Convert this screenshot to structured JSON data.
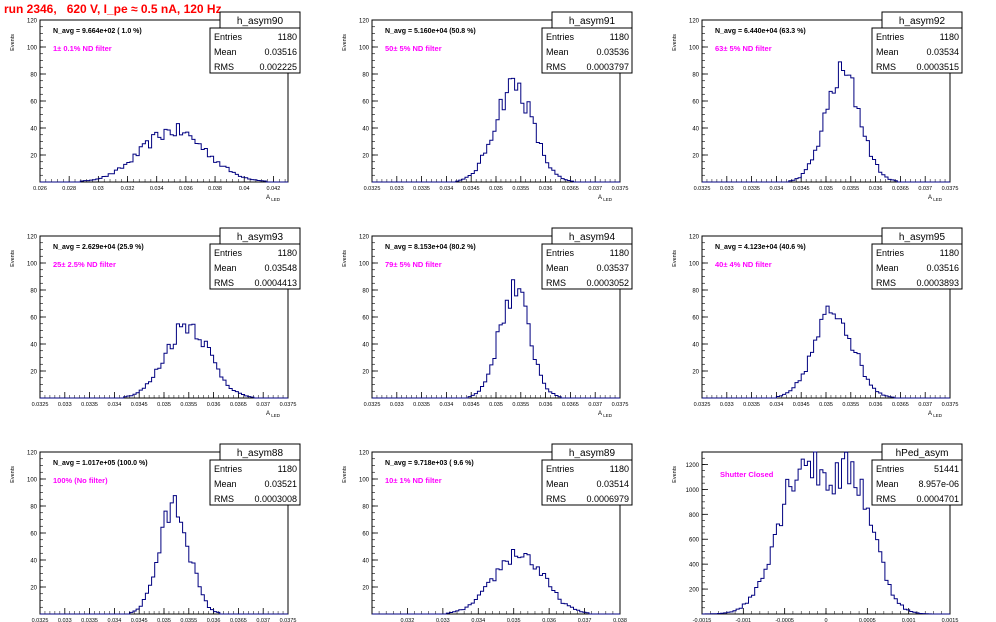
{
  "page_title": "run 2346,   620 V, I_pe ≈ 0.5 nA, 120 Hz",
  "colors": {
    "histogram": "#000080",
    "note": "#ff00ff",
    "title": "#ff0000",
    "axis": "#000000"
  },
  "chart_data": [
    {
      "type": "histogram",
      "name": "h_asym90",
      "navg": "N_avg = 9.664e+02 ( 1.0 %)",
      "note": "1± 0.1% ND filter",
      "stats": [
        [
          "Entries",
          "1180"
        ],
        [
          "Mean",
          "0.03516"
        ],
        [
          "RMS",
          "0.002225"
        ]
      ],
      "xlim": [
        0.026,
        0.043
      ],
      "ylim": [
        0,
        120
      ],
      "xticks": [
        "0.026",
        "0.028",
        "0.03",
        "0.032",
        "0.034",
        "0.036",
        "0.038",
        "0.04",
        "0.042"
      ],
      "xtick_values": [
        0.026,
        0.028,
        0.03,
        0.032,
        0.034,
        0.036,
        0.038,
        0.04,
        0.042
      ],
      "yticks": [
        20,
        40,
        60,
        80,
        100,
        120
      ],
      "xlabel": "A",
      "xlabel_sub": "LED",
      "ylabel": "Events",
      "mean": 0.03516,
      "rms": 0.002225,
      "peak": 38,
      "shape": "single"
    },
    {
      "type": "histogram",
      "name": "h_asym91",
      "navg": "N_avg = 5.160e+04 (50.8 %)",
      "note": "50± 5% ND filter",
      "stats": [
        [
          "Entries",
          "1180"
        ],
        [
          "Mean",
          "0.03536"
        ],
        [
          "RMS",
          "0.0003797"
        ]
      ],
      "xlim": [
        0.0325,
        0.0375
      ],
      "ylim": [
        0,
        120
      ],
      "xticks": [
        "0.0325",
        "0.033",
        "0.0335",
        "0.034",
        "0.0345",
        "0.035",
        "0.0355",
        "0.036",
        "0.0365",
        "0.037",
        "0.0375"
      ],
      "xtick_values": [
        0.0325,
        0.033,
        0.0335,
        0.034,
        0.0345,
        0.035,
        0.0355,
        0.036,
        0.0365,
        0.037,
        0.0375
      ],
      "yticks": [
        20,
        40,
        60,
        80,
        100,
        120
      ],
      "xlabel": "A",
      "xlabel_sub": "LED",
      "ylabel": "Events",
      "mean": 0.03536,
      "rms": 0.0003797,
      "peak": 72,
      "shape": "single"
    },
    {
      "type": "histogram",
      "name": "h_asym92",
      "navg": "N_avg = 6.440e+04 (63.3 %)",
      "note": "63± 5% ND filter",
      "stats": [
        [
          "Entries",
          "1180"
        ],
        [
          "Mean",
          "0.03534"
        ],
        [
          "RMS",
          "0.0003515"
        ]
      ],
      "xlim": [
        0.0325,
        0.0375
      ],
      "ylim": [
        0,
        120
      ],
      "xticks": [
        "0.0325",
        "0.033",
        "0.0335",
        "0.034",
        "0.0345",
        "0.035",
        "0.0355",
        "0.036",
        "0.0365",
        "0.037",
        "0.0375"
      ],
      "xtick_values": [
        0.0325,
        0.033,
        0.0335,
        0.034,
        0.0345,
        0.035,
        0.0355,
        0.036,
        0.0365,
        0.037,
        0.0375
      ],
      "yticks": [
        20,
        40,
        60,
        80,
        100,
        120
      ],
      "xlabel": "A",
      "xlabel_sub": "LED",
      "ylabel": "Events",
      "mean": 0.03534,
      "rms": 0.0003515,
      "peak": 80,
      "shape": "single"
    },
    {
      "type": "histogram",
      "name": "h_asym93",
      "navg": "N_avg = 2.629e+04 (25.9 %)",
      "note": "25± 2.5% ND filter",
      "stats": [
        [
          "Entries",
          "1180"
        ],
        [
          "Mean",
          "0.03548"
        ],
        [
          "RMS",
          "0.0004413"
        ]
      ],
      "xlim": [
        0.0325,
        0.0375
      ],
      "ylim": [
        0,
        120
      ],
      "xticks": [
        "0.0325",
        "0.033",
        "0.0335",
        "0.034",
        "0.0345",
        "0.035",
        "0.0355",
        "0.036",
        "0.0365",
        "0.037",
        "0.0375"
      ],
      "xtick_values": [
        0.0325,
        0.033,
        0.0335,
        0.034,
        0.0345,
        0.035,
        0.0355,
        0.036,
        0.0365,
        0.037,
        0.0375
      ],
      "yticks": [
        20,
        40,
        60,
        80,
        100,
        120
      ],
      "xlabel": "A",
      "xlabel_sub": "LED",
      "ylabel": "Events",
      "mean": 0.03548,
      "rms": 0.0004413,
      "peak": 55,
      "shape": "single"
    },
    {
      "type": "histogram",
      "name": "h_asym94",
      "navg": "N_avg = 8.153e+04 (80.2 %)",
      "note": "79± 5% ND filter",
      "stats": [
        [
          "Entries",
          "1180"
        ],
        [
          "Mean",
          "0.03537"
        ],
        [
          "RMS",
          "0.0003052"
        ]
      ],
      "xlim": [
        0.0325,
        0.0375
      ],
      "ylim": [
        0,
        120
      ],
      "xticks": [
        "0.0325",
        "0.033",
        "0.0335",
        "0.034",
        "0.0345",
        "0.035",
        "0.0355",
        "0.036",
        "0.0365",
        "0.037",
        "0.0375"
      ],
      "xtick_values": [
        0.0325,
        0.033,
        0.0335,
        0.034,
        0.0345,
        0.035,
        0.0355,
        0.036,
        0.0365,
        0.037,
        0.0375
      ],
      "yticks": [
        20,
        40,
        60,
        80,
        100,
        120
      ],
      "xlabel": "A",
      "xlabel_sub": "LED",
      "ylabel": "Events",
      "mean": 0.03537,
      "rms": 0.0003052,
      "peak": 80,
      "shape": "single"
    },
    {
      "type": "histogram",
      "name": "h_asym95",
      "navg": "N_avg = 4.123e+04 (40.6 %)",
      "note": "40± 4% ND filter",
      "stats": [
        [
          "Entries",
          "1180"
        ],
        [
          "Mean",
          "0.03516"
        ],
        [
          "RMS",
          "0.0003893"
        ]
      ],
      "xlim": [
        0.0325,
        0.0375
      ],
      "ylim": [
        0,
        120
      ],
      "xticks": [
        "0.0325",
        "0.033",
        "0.0335",
        "0.034",
        "0.0345",
        "0.035",
        "0.0355",
        "0.036",
        "0.0365",
        "0.037",
        "0.0375"
      ],
      "xtick_values": [
        0.0325,
        0.033,
        0.0335,
        0.034,
        0.0345,
        0.035,
        0.0355,
        0.036,
        0.0365,
        0.037,
        0.0375
      ],
      "yticks": [
        20,
        40,
        60,
        80,
        100,
        120
      ],
      "xlabel": "A",
      "xlabel_sub": "LED",
      "ylabel": "Events",
      "mean": 0.03516,
      "rms": 0.0003893,
      "peak": 65,
      "shape": "single"
    },
    {
      "type": "histogram",
      "name": "h_asym88",
      "navg": "N_avg = 1.017e+05 (100.0 %)",
      "note": "100% (No filter)",
      "stats": [
        [
          "Entries",
          "1180"
        ],
        [
          "Mean",
          "0.03521"
        ],
        [
          "RMS",
          "0.0003008"
        ]
      ],
      "xlim": [
        0.0325,
        0.0375
      ],
      "ylim": [
        0,
        120
      ],
      "xticks": [
        "0.0325",
        "0.033",
        "0.0335",
        "0.034",
        "0.0345",
        "0.035",
        "0.0355",
        "0.036",
        "0.0365",
        "0.037",
        "0.0375"
      ],
      "xtick_values": [
        0.0325,
        0.033,
        0.0335,
        0.034,
        0.0345,
        0.035,
        0.0355,
        0.036,
        0.0365,
        0.037,
        0.0375
      ],
      "yticks": [
        20,
        40,
        60,
        80,
        100,
        120
      ],
      "xlabel": "A",
      "xlabel_sub": "LED",
      "ylabel": "Events",
      "mean": 0.03521,
      "rms": 0.0003008,
      "peak": 80,
      "shape": "single"
    },
    {
      "type": "histogram",
      "name": "h_asym89",
      "navg": "N_avg = 9.718e+03 ( 9.6 %)",
      "note": "10± 1% ND filter",
      "stats": [
        [
          "Entries",
          "1180"
        ],
        [
          "Mean",
          "0.03514"
        ],
        [
          "RMS",
          "0.0006979"
        ]
      ],
      "xlim": [
        0.031,
        0.038
      ],
      "ylim": [
        0,
        120
      ],
      "xticks": [
        "0.032",
        "0.033",
        "0.034",
        "0.035",
        "0.036",
        "0.037",
        "0.038"
      ],
      "xtick_values": [
        0.032,
        0.033,
        0.034,
        0.035,
        0.036,
        0.037,
        0.038
      ],
      "yticks": [
        20,
        40,
        60,
        80,
        100,
        120
      ],
      "xlabel": "A",
      "xlabel_sub": "LED",
      "ylabel": "Events",
      "mean": 0.03514,
      "rms": 0.0006979,
      "peak": 45,
      "shape": "single"
    },
    {
      "type": "histogram",
      "name": "hPed_asym",
      "navg": "",
      "note": "Shutter Closed",
      "stats": [
        [
          "Entries",
          "51441"
        ],
        [
          "Mean",
          "8.957e-06"
        ],
        [
          "RMS",
          "0.0004701"
        ]
      ],
      "xlim": [
        -0.0015,
        0.0015
      ],
      "ylim": [
        0,
        1300
      ],
      "xticks": [
        "-0.0015",
        "-0.001",
        "-0.0005",
        "0",
        "0.0005",
        "0.001",
        "0.0015"
      ],
      "xtick_values": [
        -0.0015,
        -0.001,
        -0.0005,
        0,
        0.0005,
        0.001,
        0.0015
      ],
      "yticks": [
        200,
        400,
        600,
        800,
        1000,
        1200
      ],
      "xlabel": "A",
      "xlabel_sub": "LED",
      "ylabel": "Events",
      "mean": 9e-06,
      "rms": 0.0004701,
      "peak": 1260,
      "shape": "double"
    }
  ]
}
